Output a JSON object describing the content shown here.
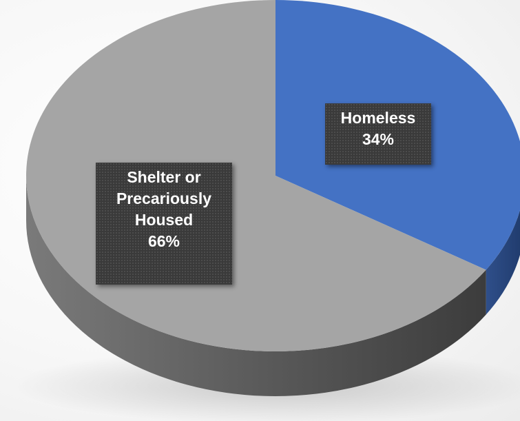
{
  "chart_data": {
    "type": "pie",
    "title": "",
    "style": "3d",
    "slices": [
      {
        "name": "Homeless",
        "value": 34,
        "label_lines": [
          "Homeless",
          "34%"
        ],
        "color": "#4472c4",
        "side_color": "#2f4f8a"
      },
      {
        "name": "Shelter or Precariously Housed",
        "value": 66,
        "label_lines": [
          "Shelter or",
          "Precariously",
          "Housed",
          "66%"
        ],
        "color": "#a5a5a5",
        "side_color": "#6e6e6e"
      }
    ],
    "legend": "none",
    "data_labels": "inside, dark boxes"
  }
}
